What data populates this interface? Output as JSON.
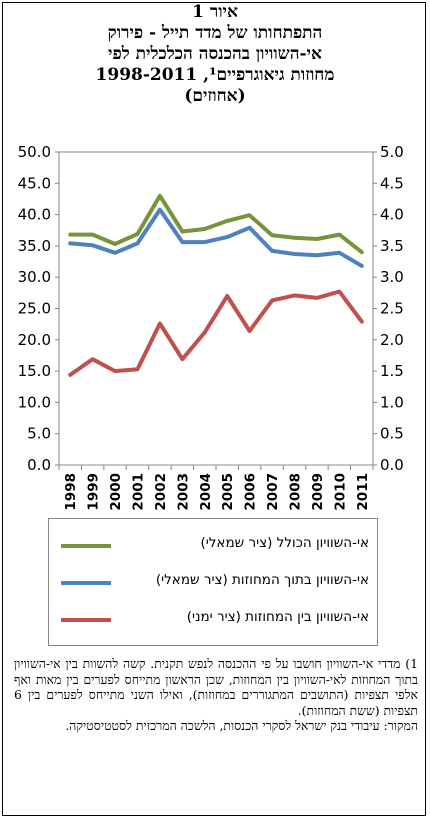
{
  "title_lines": [
    "איור 1",
    "התפתחותו של מדד תייל - פירוק",
    "אי-השוויון בהכנסה הכלכלית לפי",
    "מחוזות גיאוגרפיים¹, 1998-2011",
    "(אחוזים)"
  ],
  "chart_data": {
    "type": "line",
    "categories": [
      "1998",
      "1999",
      "2000",
      "2001",
      "2002",
      "2003",
      "2004",
      "2005",
      "2006",
      "2007",
      "2008",
      "2009",
      "2010",
      "2011"
    ],
    "left_axis": {
      "ylim": [
        0,
        50
      ],
      "ticks": [
        "0.0",
        "5.0",
        "10.0",
        "15.0",
        "20.0",
        "25.0",
        "30.0",
        "35.0",
        "40.0",
        "45.0",
        "50.0"
      ]
    },
    "right_axis": {
      "ylim": [
        0,
        5
      ],
      "ticks": [
        "0.0",
        "0.5",
        "1.0",
        "1.5",
        "2.0",
        "2.5",
        "3.0",
        "3.5",
        "4.0",
        "4.5",
        "5.0"
      ]
    },
    "grid": false,
    "series": [
      {
        "name": "אי-השוויון הכולל (ציר שמאלי)",
        "axis": "left",
        "color": "#77933C",
        "values": [
          36.8,
          36.8,
          35.3,
          36.9,
          43.0,
          37.3,
          37.7,
          39.0,
          39.9,
          36.7,
          36.3,
          36.1,
          36.8,
          34.0
        ]
      },
      {
        "name": "אי-השוויון בתוך המחוזות (ציר שמאלי)",
        "axis": "left",
        "color": "#4F81BD",
        "values": [
          35.4,
          35.1,
          33.9,
          35.4,
          40.8,
          35.6,
          35.6,
          36.4,
          37.9,
          34.2,
          33.7,
          33.5,
          33.9,
          31.8
        ]
      },
      {
        "name": "אי-השוויון בין המחוזות (ציר ימני)",
        "axis": "right",
        "color": "#C0504D",
        "values": [
          1.44,
          1.69,
          1.5,
          1.53,
          2.26,
          1.69,
          2.12,
          2.7,
          2.14,
          2.63,
          2.71,
          2.67,
          2.77,
          2.29
        ]
      }
    ]
  },
  "notes": [
    "1) מדדי אי-השוויון חושבו על פי ההכנסה לנפש תקנית. קשה להשוות בין אי-השוויון בתוך המחוזות לאי-השוויון בין המחוזות, שכן הראשון מתייחס לפערים בין מאות ואף אלפי תצפיות (התושבים המתגוררים במחוזות), ואילו השני מתייחס לפערים בין 6 תצפיות (ששת המחוזות).",
    "המקור: עיבודי בנק ישראל לסקרי הכנסות, הלשכה המרכזית לסטטיסטיקה."
  ]
}
